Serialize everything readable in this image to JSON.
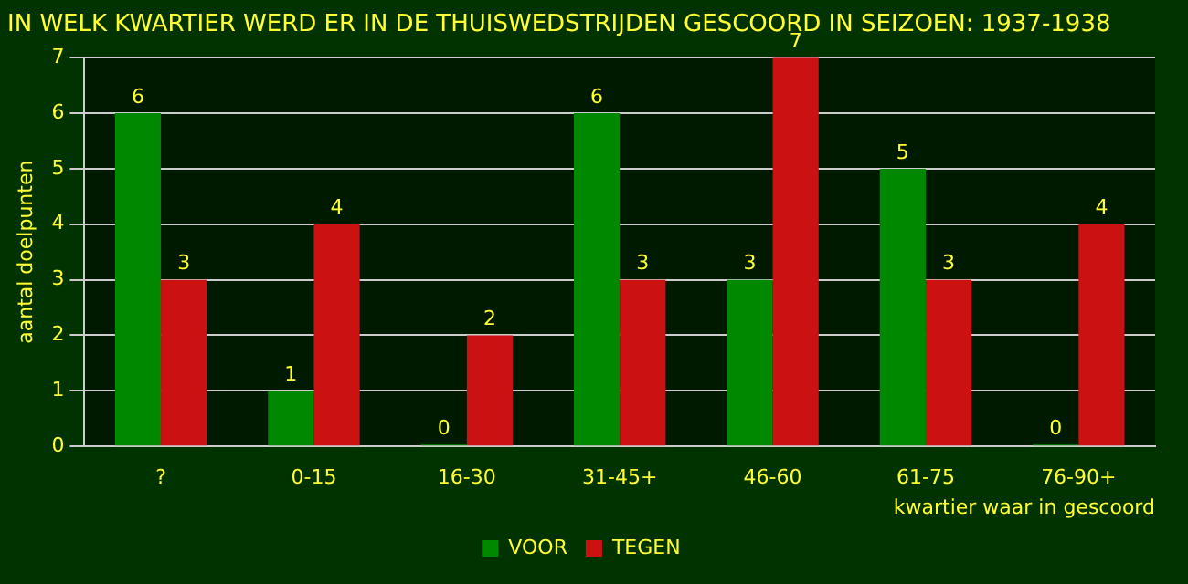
{
  "chart_data": {
    "type": "bar",
    "title": "IN WELK KWARTIER WERD ER IN DE THUISWEDSTRIJDEN GESCOORD IN SEIZOEN: 1937-1938",
    "xlabel": "kwartier waar in gescoord",
    "ylabel": "aantal doelpunten",
    "categories": [
      "?",
      "0-15",
      "16-30",
      "31-45+",
      "46-60",
      "61-75",
      "76-90+"
    ],
    "series": [
      {
        "name": "VOOR",
        "color": "#008800",
        "values": [
          6,
          1,
          0,
          6,
          3,
          5,
          0
        ]
      },
      {
        "name": "TEGEN",
        "color": "#cc1111",
        "values": [
          3,
          4,
          2,
          3,
          7,
          3,
          4
        ]
      }
    ],
    "ylim": [
      0,
      7
    ],
    "yticks": [
      0,
      1,
      2,
      3,
      4,
      5,
      6,
      7
    ],
    "grid": "y",
    "legend": "bottom",
    "data_labels": true
  }
}
